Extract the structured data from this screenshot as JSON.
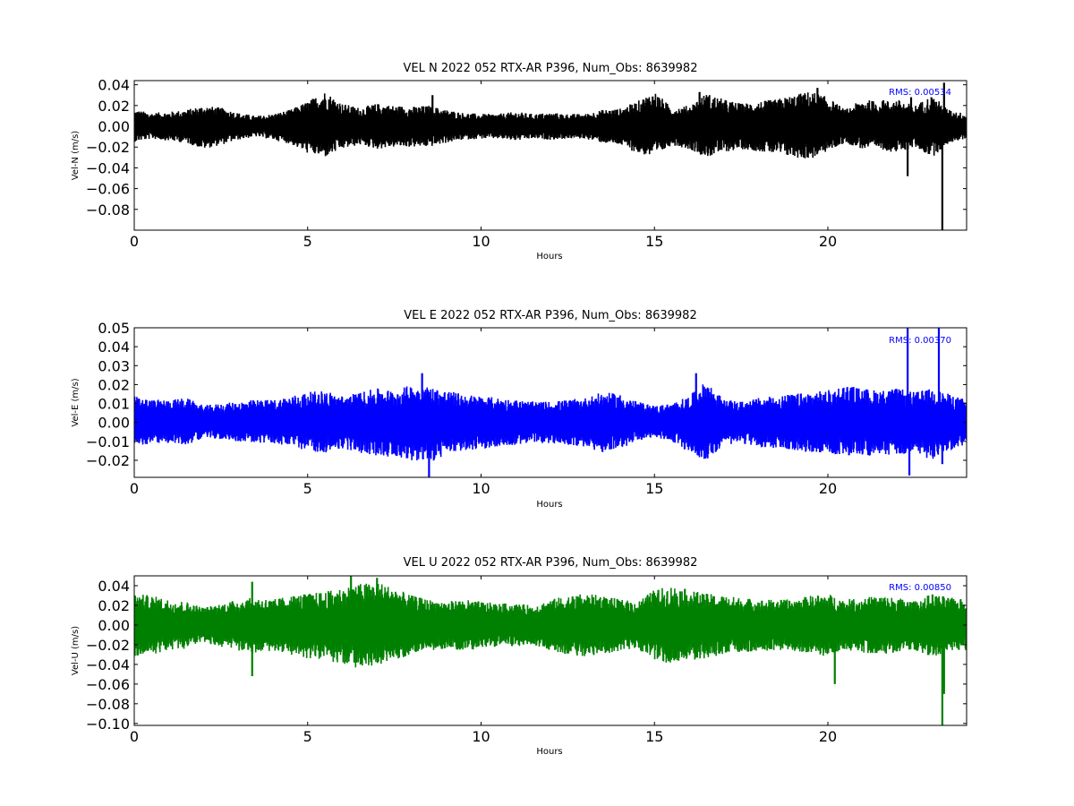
{
  "chart_data": [
    {
      "type": "line",
      "title": "VEL N 2022 052 RTX-AR  P396, Num_Obs: 8639982",
      "xlabel": "Hours",
      "ylabel": "Vel-N (m/s)",
      "xlim": [
        0,
        24
      ],
      "ylim": [
        -0.1,
        0.044
      ],
      "xticks": [
        0,
        5,
        10,
        15,
        20
      ],
      "xtick_labels": [
        "0",
        "5",
        "10",
        "15",
        "20"
      ],
      "yticks": [
        -0.08,
        -0.06,
        -0.04,
        -0.02,
        0.0,
        0.02,
        0.04
      ],
      "ytick_labels": [
        "−0.08",
        "−0.06",
        "−0.04",
        "−0.02",
        "0.00",
        "0.02",
        "0.04"
      ],
      "rms_label": "RMS:  0.00534",
      "grid": false,
      "color": "#000000",
      "series": [
        {
          "x": [
            0,
            0.5,
            1,
            1.5,
            2,
            2.5,
            3,
            3.5,
            4,
            4.5,
            5,
            5.5,
            6,
            6.5,
            7,
            7.5,
            8,
            8.5,
            9,
            9.5,
            10,
            10.5,
            11,
            11.5,
            12,
            12.5,
            13,
            13.5,
            14,
            14.5,
            15,
            15.5,
            16,
            16.5,
            17,
            17.5,
            18,
            18.5,
            19,
            19.5,
            20,
            20.5,
            21,
            21.5,
            22,
            22.5,
            23,
            23.5,
            24
          ],
          "max": [
            0.016,
            0.013,
            0.014,
            0.016,
            0.02,
            0.018,
            0.013,
            0.01,
            0.012,
            0.016,
            0.024,
            0.034,
            0.022,
            0.018,
            0.022,
            0.02,
            0.019,
            0.02,
            0.016,
            0.013,
            0.012,
            0.012,
            0.014,
            0.012,
            0.013,
            0.012,
            0.012,
            0.016,
            0.017,
            0.024,
            0.034,
            0.018,
            0.02,
            0.032,
            0.026,
            0.022,
            0.024,
            0.026,
            0.03,
            0.034,
            0.028,
            0.016,
            0.026,
            0.024,
            0.026,
            0.02,
            0.03,
            0.016,
            0.012
          ],
          "min": [
            -0.015,
            -0.012,
            -0.014,
            -0.016,
            -0.022,
            -0.018,
            -0.013,
            -0.01,
            -0.013,
            -0.017,
            -0.026,
            -0.03,
            -0.022,
            -0.018,
            -0.022,
            -0.02,
            -0.02,
            -0.02,
            -0.016,
            -0.013,
            -0.012,
            -0.012,
            -0.014,
            -0.012,
            -0.013,
            -0.012,
            -0.012,
            -0.016,
            -0.018,
            -0.026,
            -0.03,
            -0.018,
            -0.022,
            -0.03,
            -0.025,
            -0.022,
            -0.024,
            -0.027,
            -0.03,
            -0.032,
            -0.024,
            -0.016,
            -0.022,
            -0.022,
            -0.026,
            -0.02,
            -0.03,
            -0.016,
            -0.012
          ],
          "spikes": [
            {
              "x": 8.6,
              "y": 0.03
            },
            {
              "x": 16.3,
              "y": 0.033
            },
            {
              "x": 19.7,
              "y": 0.037
            },
            {
              "x": 21.6,
              "y": 0.025
            },
            {
              "x": 22.3,
              "y": -0.048
            },
            {
              "x": 22.4,
              "y": 0.028
            },
            {
              "x": 23.3,
              "y": -0.1
            },
            {
              "x": 23.35,
              "y": 0.042
            }
          ]
        }
      ]
    },
    {
      "type": "line",
      "title": "VEL E 2022 052 RTX-AR  P396, Num_Obs: 8639982",
      "xlabel": "Hours",
      "ylabel": "Vel-E (m/s)",
      "xlim": [
        0,
        24
      ],
      "ylim": [
        -0.029,
        0.05
      ],
      "xticks": [
        0,
        5,
        10,
        15,
        20
      ],
      "xtick_labels": [
        "0",
        "5",
        "10",
        "15",
        "20"
      ],
      "yticks": [
        -0.02,
        -0.01,
        0.0,
        0.01,
        0.02,
        0.03,
        0.04,
        0.05
      ],
      "ytick_labels": [
        "−0.02",
        "−0.01",
        "0.00",
        "0.01",
        "0.02",
        "0.03",
        "0.04",
        "0.05"
      ],
      "rms_label": "RMS:  0.00370",
      "grid": false,
      "color": "#0000ff",
      "series": [
        {
          "x": [
            0,
            0.5,
            1,
            1.5,
            2,
            2.5,
            3,
            3.5,
            4,
            4.5,
            5,
            5.5,
            6,
            6.5,
            7,
            7.5,
            8,
            8.5,
            9,
            9.5,
            10,
            10.5,
            11,
            11.5,
            12,
            12.5,
            13,
            13.5,
            14,
            14.5,
            15,
            15.5,
            16,
            16.5,
            17,
            17.5,
            18,
            18.5,
            19,
            19.5,
            20,
            20.5,
            21,
            21.5,
            22,
            22.5,
            23,
            23.5,
            24
          ],
          "max": [
            0.014,
            0.012,
            0.012,
            0.013,
            0.009,
            0.01,
            0.011,
            0.012,
            0.012,
            0.014,
            0.016,
            0.017,
            0.014,
            0.016,
            0.018,
            0.017,
            0.02,
            0.019,
            0.017,
            0.015,
            0.014,
            0.013,
            0.012,
            0.011,
            0.011,
            0.012,
            0.013,
            0.016,
            0.015,
            0.011,
            0.009,
            0.01,
            0.014,
            0.022,
            0.012,
            0.011,
            0.013,
            0.014,
            0.015,
            0.016,
            0.017,
            0.02,
            0.018,
            0.017,
            0.018,
            0.016,
            0.018,
            0.015,
            0.012
          ],
          "min": [
            -0.013,
            -0.011,
            -0.011,
            -0.012,
            -0.008,
            -0.009,
            -0.01,
            -0.011,
            -0.011,
            -0.013,
            -0.015,
            -0.016,
            -0.014,
            -0.016,
            -0.018,
            -0.018,
            -0.02,
            -0.022,
            -0.017,
            -0.015,
            -0.014,
            -0.013,
            -0.012,
            -0.011,
            -0.011,
            -0.012,
            -0.013,
            -0.016,
            -0.014,
            -0.01,
            -0.008,
            -0.01,
            -0.016,
            -0.02,
            -0.012,
            -0.011,
            -0.013,
            -0.014,
            -0.015,
            -0.016,
            -0.016,
            -0.018,
            -0.018,
            -0.017,
            -0.018,
            -0.016,
            -0.02,
            -0.015,
            -0.012
          ],
          "spikes": [
            {
              "x": 8.3,
              "y": 0.026
            },
            {
              "x": 8.5,
              "y": -0.029
            },
            {
              "x": 16.2,
              "y": 0.026
            },
            {
              "x": 22.3,
              "y": 0.05
            },
            {
              "x": 22.35,
              "y": -0.028
            },
            {
              "x": 23.2,
              "y": 0.05
            },
            {
              "x": 23.3,
              "y": -0.022
            }
          ]
        }
      ]
    },
    {
      "type": "line",
      "title": "VEL U 2022 052 RTX-AR  P396, Num_Obs: 8639982",
      "xlabel": "Hours",
      "ylabel": "Vel-U (m/s)",
      "xlim": [
        0,
        24
      ],
      "ylim": [
        -0.102,
        0.05
      ],
      "xticks": [
        0,
        5,
        10,
        15,
        20
      ],
      "xtick_labels": [
        "0",
        "5",
        "10",
        "15",
        "20"
      ],
      "yticks": [
        -0.1,
        -0.08,
        -0.06,
        -0.04,
        -0.02,
        0.0,
        0.02,
        0.04
      ],
      "ytick_labels": [
        "−0.10",
        "−0.08",
        "−0.06",
        "−0.04",
        "−0.02",
        "0.00",
        "0.02",
        "0.04"
      ],
      "rms_label": "RMS:  0.00850",
      "grid": false,
      "color": "#008000",
      "series": [
        {
          "x": [
            0,
            0.5,
            1,
            1.5,
            2,
            2.5,
            3,
            3.5,
            4,
            4.5,
            5,
            5.5,
            6,
            6.5,
            7,
            7.5,
            8,
            8.5,
            9,
            9.5,
            10,
            10.5,
            11,
            11.5,
            12,
            12.5,
            13,
            13.5,
            14,
            14.5,
            15,
            15.5,
            16,
            16.5,
            17,
            17.5,
            18,
            18.5,
            19,
            19.5,
            20,
            20.5,
            21,
            21.5,
            22,
            22.5,
            23,
            23.5,
            24
          ],
          "max": [
            0.032,
            0.03,
            0.026,
            0.024,
            0.018,
            0.022,
            0.026,
            0.028,
            0.026,
            0.03,
            0.032,
            0.034,
            0.038,
            0.042,
            0.044,
            0.038,
            0.03,
            0.026,
            0.024,
            0.026,
            0.024,
            0.022,
            0.022,
            0.02,
            0.026,
            0.03,
            0.032,
            0.03,
            0.026,
            0.024,
            0.036,
            0.04,
            0.036,
            0.032,
            0.03,
            0.028,
            0.026,
            0.026,
            0.026,
            0.03,
            0.032,
            0.026,
            0.028,
            0.03,
            0.028,
            0.024,
            0.032,
            0.028,
            0.026
          ],
          "min": [
            -0.034,
            -0.03,
            -0.026,
            -0.024,
            -0.018,
            -0.022,
            -0.026,
            -0.03,
            -0.026,
            -0.03,
            -0.034,
            -0.036,
            -0.04,
            -0.044,
            -0.042,
            -0.036,
            -0.03,
            -0.026,
            -0.024,
            -0.026,
            -0.024,
            -0.022,
            -0.022,
            -0.02,
            -0.026,
            -0.03,
            -0.032,
            -0.03,
            -0.026,
            -0.024,
            -0.036,
            -0.04,
            -0.036,
            -0.034,
            -0.03,
            -0.028,
            -0.026,
            -0.026,
            -0.026,
            -0.03,
            -0.032,
            -0.026,
            -0.028,
            -0.03,
            -0.028,
            -0.026,
            -0.034,
            -0.028,
            -0.026
          ],
          "spikes": [
            {
              "x": 3.4,
              "y": 0.044
            },
            {
              "x": 3.4,
              "y": -0.052
            },
            {
              "x": 6.25,
              "y": 0.05
            },
            {
              "x": 7.0,
              "y": 0.048
            },
            {
              "x": 23.3,
              "y": -0.102
            },
            {
              "x": 23.35,
              "y": -0.07
            },
            {
              "x": 20.2,
              "y": -0.06
            }
          ]
        }
      ]
    }
  ]
}
